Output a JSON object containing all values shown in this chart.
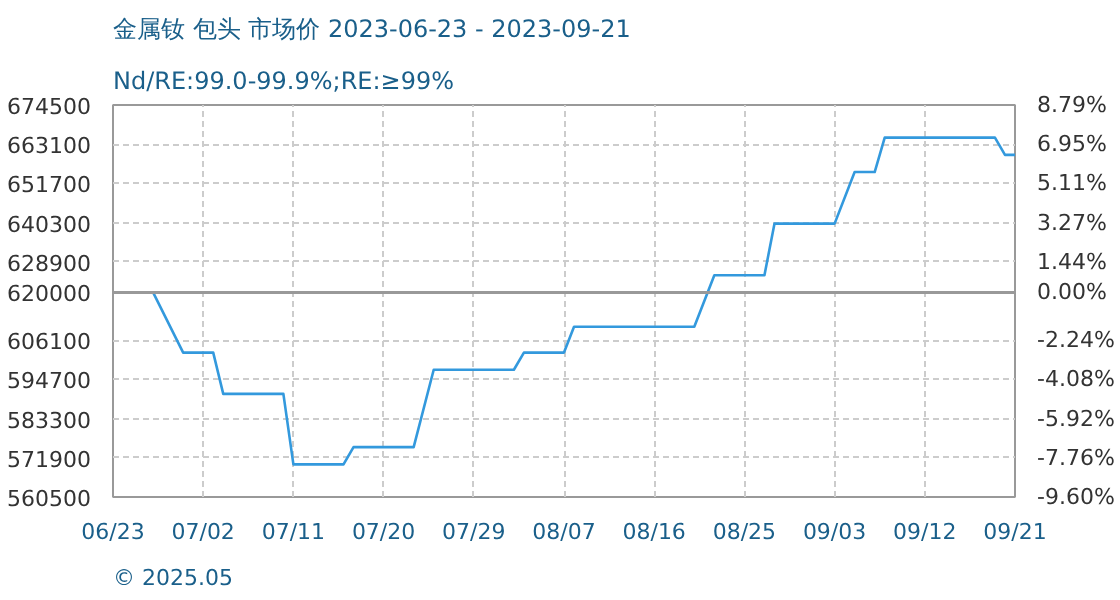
{
  "chart_data": {
    "type": "line",
    "title": "金属钕 包头 市场价 2023-06-23 - 2023-09-21",
    "subtitle": "Nd/RE:99.0-99.9%;RE:≥99%",
    "annotations": [
      "© 2025.05"
    ],
    "x": [
      "2023-06-23",
      "2023-06-27",
      "2023-06-30",
      "2023-07-03",
      "2023-07-04",
      "2023-07-10",
      "2023-07-11",
      "2023-07-16",
      "2023-07-17",
      "2023-07-23",
      "2023-07-25",
      "2023-08-02",
      "2023-08-03",
      "2023-08-07",
      "2023-08-08",
      "2023-08-20",
      "2023-08-22",
      "2023-08-27",
      "2023-08-28",
      "2023-09-03",
      "2023-09-05",
      "2023-09-07",
      "2023-09-08",
      "2023-09-19",
      "2023-09-20",
      "2023-09-21"
    ],
    "series": [
      {
        "color": "#3399dd",
        "values": [
          620000,
          620000,
          602500,
          602500,
          590500,
          590500,
          570000,
          570000,
          575000,
          575000,
          597500,
          597500,
          602500,
          602500,
          610000,
          610000,
          625000,
          625000,
          640000,
          640000,
          655000,
          655000,
          665000,
          665000,
          660000,
          660000
        ]
      }
    ],
    "xlim": [
      "2023-06-23",
      "2023-09-21"
    ],
    "xticks": [
      {
        "value": "2023-06-23",
        "label": "06/23"
      },
      {
        "value": "2023-07-02",
        "label": "07/02"
      },
      {
        "value": "2023-07-11",
        "label": "07/11"
      },
      {
        "value": "2023-07-20",
        "label": "07/20"
      },
      {
        "value": "2023-07-29",
        "label": "07/29"
      },
      {
        "value": "2023-08-07",
        "label": "08/07"
      },
      {
        "value": "2023-08-16",
        "label": "08/16"
      },
      {
        "value": "2023-08-25",
        "label": "08/25"
      },
      {
        "value": "2023-09-03",
        "label": "09/03"
      },
      {
        "value": "2023-09-12",
        "label": "09/12"
      },
      {
        "value": "2023-09-21",
        "label": "09/21"
      }
    ],
    "ylim": [
      560500,
      674500
    ],
    "yticks": [
      560500,
      571900,
      583300,
      594700,
      606100,
      620000,
      628900,
      640300,
      651700,
      663100,
      674500
    ],
    "y2lim": [
      -9.6,
      8.79
    ],
    "y2ticks": [
      {
        "value": -9.6,
        "label": "-9.60%"
      },
      {
        "value": -7.76,
        "label": "-7.76%"
      },
      {
        "value": -5.92,
        "label": "-5.92%"
      },
      {
        "value": -4.08,
        "label": "-4.08%"
      },
      {
        "value": -2.24,
        "label": "-2.24%"
      },
      {
        "value": 0,
        "label": "0.00%"
      },
      {
        "value": 1.44,
        "label": "1.44%"
      },
      {
        "value": 3.27,
        "label": "3.27%"
      },
      {
        "value": 5.11,
        "label": "5.11%"
      },
      {
        "value": 6.95,
        "label": "6.95%"
      },
      {
        "value": 8.79,
        "label": "8.79%"
      }
    ],
    "ref_lines": [
      {
        "axis": "y",
        "value": 620000,
        "color": "#999999"
      }
    ],
    "grid": true,
    "marker": "none",
    "line_style": "solid"
  }
}
